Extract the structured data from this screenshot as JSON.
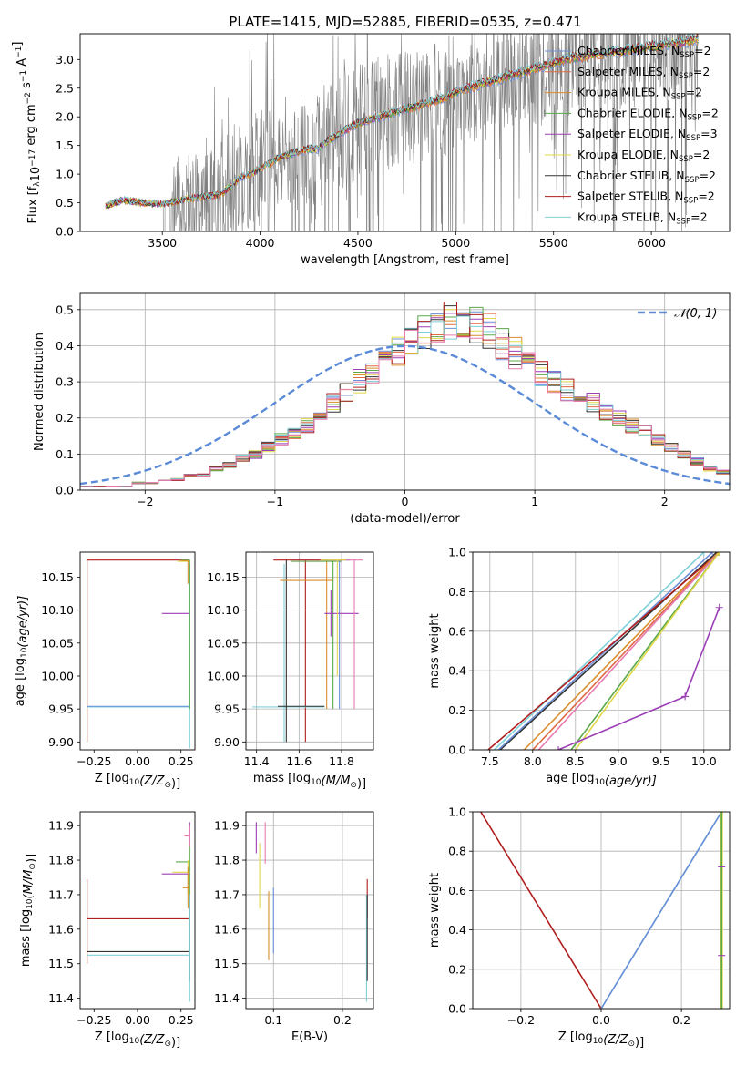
{
  "figure_title": "PLATE=1415, MJD=52885, FIBERID=0535, z=0.471",
  "colors": {
    "Chabrier MILES": "#6a8fd8",
    "Salpeter MILES": "#e06a44",
    "Kroupa MILES": "#d98e2b",
    "Chabrier ELODIE": "#5aa84a",
    "Salpeter ELODIE": "#9b3fb5",
    "Kroupa ELODIE": "#e0d84a",
    "Chabrier STELIB": "#333333",
    "Salpeter STELIB": "#b01e1e",
    "Kroupa STELIB": "#7fd0d8",
    "extra_pink": "#e87ab0",
    "extra_lime": "#c2e04a",
    "data": "#808080",
    "normal": "#5b8bd8"
  },
  "chart_data": [
    {
      "id": "spectrum",
      "type": "line",
      "title": "PLATE=1415, MJD=52885, FIBERID=0535, z=0.471",
      "xlabel": "wavelength [Angstrom, rest frame]",
      "ylabel": "Flux [f",
      "ylabel_parts": [
        "Flux [f",
        "λ",
        "10",
        "−17",
        " erg cm",
        "−2",
        " s",
        "−1",
        " A",
        "−1",
        "]"
      ],
      "xlim": [
        3080,
        6400
      ],
      "ylim": [
        0,
        3.45
      ],
      "xticks": [
        3500,
        4000,
        4500,
        5000,
        5500,
        6000
      ],
      "yticks": [
        0.0,
        0.5,
        1.0,
        1.5,
        2.0,
        2.5,
        3.0
      ],
      "ytick_labels": [
        "0.0",
        "0.5",
        "1.0",
        "1.5",
        "2.0",
        "2.5",
        "3.0"
      ],
      "legend_position": "upper-right",
      "legend": [
        {
          "model": "Chabrier MILES",
          "label": "Chabrier MILES, N",
          "sub": "SSP",
          "suffix": "=2"
        },
        {
          "model": "Salpeter MILES",
          "label": "Salpeter MILES, N",
          "sub": "SSP",
          "suffix": "=2"
        },
        {
          "model": "Kroupa MILES",
          "label": "Kroupa MILES, N",
          "sub": "SSP",
          "suffix": "=2"
        },
        {
          "model": "Chabrier ELODIE",
          "label": "Chabrier ELODIE, N",
          "sub": "SSP",
          "suffix": "=2"
        },
        {
          "model": "Salpeter ELODIE",
          "label": "Salpeter ELODIE, N",
          "sub": "SSP",
          "suffix": "=3"
        },
        {
          "model": "Kroupa ELODIE",
          "label": "Kroupa ELODIE, N",
          "sub": "SSP",
          "suffix": "=2"
        },
        {
          "model": "Chabrier STELIB",
          "label": "Chabrier STELIB, N",
          "sub": "SSP",
          "suffix": "=2"
        },
        {
          "model": "Salpeter STELIB",
          "label": "Salpeter STELIB, N",
          "sub": "SSP",
          "suffix": "=2"
        },
        {
          "model": "Kroupa STELIB",
          "label": "Kroupa STELIB, N",
          "sub": "SSP",
          "suffix": "=2"
        }
      ],
      "model_x": [
        3210,
        3300,
        3400,
        3500,
        3600,
        3700,
        3800,
        3850,
        3900,
        3950,
        4000,
        4050,
        4100,
        4150,
        4200,
        4250,
        4300,
        4350,
        4400,
        4450,
        4500,
        4550,
        4600,
        4650,
        4700,
        4750,
        4800,
        4850,
        4900,
        4950,
        5000,
        5050,
        5100,
        5150,
        5200,
        5250,
        5300,
        5350,
        5400,
        5450,
        5500,
        5550,
        5600,
        5650,
        5700,
        5750,
        5800,
        5850,
        5900,
        5950,
        6000,
        6050,
        6100,
        6150,
        6200
      ],
      "model_y": [
        0.45,
        0.55,
        0.5,
        0.48,
        0.55,
        0.6,
        0.65,
        0.8,
        0.95,
        1.0,
        1.1,
        1.2,
        1.3,
        1.35,
        1.4,
        1.45,
        1.45,
        1.6,
        1.7,
        1.8,
        1.9,
        1.95,
        2.0,
        2.05,
        2.1,
        2.15,
        2.2,
        2.25,
        2.3,
        2.35,
        2.45,
        2.5,
        2.55,
        2.6,
        2.65,
        2.7,
        2.75,
        2.8,
        2.85,
        2.9,
        2.95,
        3.0,
        3.05,
        3.05,
        3.1,
        3.1,
        3.15,
        3.15,
        3.2,
        3.2,
        3.25,
        3.25,
        3.3,
        3.3,
        3.35
      ]
    },
    {
      "id": "residuals",
      "type": "line",
      "xlabel": "(data-model)/error",
      "ylabel": "Normed distribution",
      "xlim": [
        -2.5,
        2.5
      ],
      "ylim": [
        0,
        0.545
      ],
      "xticks": [
        -2,
        -1,
        0,
        1,
        2
      ],
      "xtick_labels": [
        "−2",
        "−1",
        "0",
        "1",
        "2"
      ],
      "yticks": [
        0.0,
        0.1,
        0.2,
        0.3,
        0.4,
        0.5
      ],
      "ytick_labels": [
        "0.0",
        "0.1",
        "0.2",
        "0.3",
        "0.4",
        "0.5"
      ],
      "legend_position": "upper-right",
      "legend": [
        {
          "label": "𝒩(0, 1)",
          "series": "normal"
        }
      ],
      "hist_bin_width": 0.1,
      "hist_base": [
        0.01,
        0.01,
        0.01,
        0.01,
        0.02,
        0.02,
        0.03,
        0.03,
        0.04,
        0.04,
        0.06,
        0.07,
        0.09,
        0.1,
        0.12,
        0.14,
        0.16,
        0.18,
        0.21,
        0.24,
        0.27,
        0.3,
        0.33,
        0.36,
        0.39,
        0.42,
        0.44,
        0.46,
        0.47,
        0.47,
        0.46,
        0.44,
        0.41,
        0.38,
        0.35,
        0.32,
        0.3,
        0.28,
        0.26,
        0.24,
        0.22,
        0.2,
        0.18,
        0.16,
        0.14,
        0.12,
        0.1,
        0.08,
        0.06,
        0.05
      ]
    },
    {
      "id": "age-vs-Z",
      "type": "scatter",
      "xlabel": "Z [log",
      "xlabel_parts": [
        "Z [log",
        "10",
        "(Z/Z",
        "⊙",
        ")]"
      ],
      "ylabel": "age  [log",
      "ylabel_parts": [
        "age  [log",
        "10",
        "(age/yr)]"
      ],
      "xlim": [
        -0.33,
        0.33
      ],
      "ylim": [
        9.888,
        10.188
      ],
      "xticks": [
        -0.25,
        0.0,
        0.25
      ],
      "xtick_labels": [
        "−0.25",
        "0.00",
        "0.25"
      ],
      "yticks": [
        9.9,
        9.95,
        10.0,
        10.05,
        10.1,
        10.15
      ],
      "ytick_labels": [
        "9.90",
        "9.95",
        "10.00",
        "10.05",
        "10.10",
        "10.15"
      ]
    },
    {
      "id": "age-vs-mass",
      "type": "scatter",
      "xlabel": "mass [log",
      "xlabel_parts": [
        "mass [log",
        "10",
        "(M/M",
        "⊙",
        ")]"
      ],
      "xlim": [
        11.35,
        11.95
      ],
      "ylim": [
        9.888,
        10.188
      ],
      "xticks": [
        11.4,
        11.6,
        11.8
      ],
      "xtick_labels": [
        "11.4",
        "11.6",
        "11.8"
      ],
      "yticks": [
        9.9,
        9.95,
        10.0,
        10.05,
        10.1,
        10.15
      ],
      "ytick_labels": [
        "9.90",
        "9.95",
        "10.00",
        "10.05",
        "10.10",
        "10.15"
      ]
    },
    {
      "id": "cumulative-age",
      "type": "line",
      "xlabel": "age  [log",
      "xlabel_parts": [
        "age  [log",
        "10",
        "(age/yr)]"
      ],
      "ylabel": "mass weight",
      "xlim": [
        7.3,
        10.3
      ],
      "ylim": [
        0,
        1.0
      ],
      "xticks": [
        7.5,
        8.0,
        8.5,
        9.0,
        9.5,
        10.0
      ],
      "xtick_labels": [
        "7.5",
        "8.0",
        "8.5",
        "9.0",
        "9.5",
        "10.0"
      ],
      "yticks": [
        0.0,
        0.2,
        0.4,
        0.6,
        0.8,
        1.0
      ],
      "ytick_labels": [
        "0.0",
        "0.2",
        "0.4",
        "0.6",
        "0.8",
        "1.0"
      ],
      "series": [
        {
          "model": "Chabrier STELIB",
          "x": [
            7.62,
            10.15
          ],
          "y": [
            0.0,
            1.0
          ]
        },
        {
          "model": "Kroupa STELIB",
          "x": [
            7.55,
            10.0
          ],
          "y": [
            0.0,
            1.0
          ]
        },
        {
          "model": "Chabrier MILES",
          "x": [
            7.6,
            10.1
          ],
          "y": [
            0.0,
            1.0
          ]
        },
        {
          "model": "Salpeter STELIB",
          "x": [
            7.48,
            10.18
          ],
          "y": [
            0.0,
            1.0
          ]
        },
        {
          "model": "Kroupa MILES",
          "x": [
            7.9,
            10.17
          ],
          "y": [
            0.0,
            1.0
          ]
        },
        {
          "model": "Salpeter MILES",
          "x": [
            8.0,
            10.18
          ],
          "y": [
            0.0,
            1.0
          ]
        },
        {
          "model": "extra_pink",
          "x": [
            8.07,
            10.18
          ],
          "y": [
            0.0,
            1.0
          ]
        },
        {
          "model": "Chabrier ELODIE",
          "x": [
            8.45,
            10.18
          ],
          "y": [
            0.0,
            1.0
          ]
        },
        {
          "model": "Kroupa ELODIE",
          "x": [
            8.5,
            10.18
          ],
          "y": [
            0.0,
            1.0
          ]
        },
        {
          "model": "Salpeter ELODIE",
          "x": [
            8.3,
            9.78,
            10.18
          ],
          "y": [
            0.0,
            0.27,
            0.72
          ]
        }
      ]
    },
    {
      "id": "mass-vs-Z",
      "type": "scatter",
      "xlabel": "Z [log",
      "xlabel_parts": [
        "Z [log",
        "10",
        "(Z/Z",
        "⊙",
        ")]"
      ],
      "ylabel": "mass [log",
      "ylabel_parts": [
        "mass [log",
        "10",
        "(M/M",
        "⊙",
        ")]"
      ],
      "xlim": [
        -0.33,
        0.33
      ],
      "ylim": [
        11.37,
        11.94
      ],
      "xticks": [
        -0.25,
        0.0,
        0.25
      ],
      "xtick_labels": [
        "−0.25",
        "0.00",
        "0.25"
      ],
      "yticks": [
        11.4,
        11.5,
        11.6,
        11.7,
        11.8,
        11.9
      ],
      "ytick_labels": [
        "11.4",
        "11.5",
        "11.6",
        "11.7",
        "11.8",
        "11.9"
      ]
    },
    {
      "id": "mass-vs-ebv",
      "type": "scatter",
      "xlabel": "E(B-V)",
      "xlim": [
        0.06,
        0.245
      ],
      "ylim": [
        11.37,
        11.94
      ],
      "xticks": [
        0.1,
        0.2
      ],
      "xtick_labels": [
        "0.1",
        "0.2"
      ],
      "yticks": [
        11.4,
        11.5,
        11.6,
        11.7,
        11.8,
        11.9
      ],
      "ytick_labels": [
        "11.4",
        "11.5",
        "11.6",
        "11.7",
        "11.8",
        "11.9"
      ]
    },
    {
      "id": "cumulative-Z",
      "type": "line",
      "xlabel": "Z [log",
      "xlabel_parts": [
        "Z [log",
        "10",
        "(Z/Z",
        "⊙",
        ")]"
      ],
      "ylabel": "mass weight",
      "xlim": [
        -0.32,
        0.32
      ],
      "ylim": [
        0,
        1.0
      ],
      "xticks": [
        -0.2,
        0.0,
        0.2
      ],
      "xtick_labels": [
        "−0.2",
        "0.0",
        "0.2"
      ],
      "yticks": [
        0.0,
        0.2,
        0.4,
        0.6,
        0.8,
        1.0
      ],
      "ytick_labels": [
        "0.0",
        "0.2",
        "0.4",
        "0.6",
        "0.8",
        "1.0"
      ],
      "series": [
        {
          "model": "Salpeter STELIB",
          "x": [
            -0.3,
            0.0
          ],
          "y": [
            1.0,
            0.0
          ]
        },
        {
          "model": "Kroupa STELIB",
          "x": [
            0.0,
            0.3
          ],
          "y": [
            0.0,
            1.0
          ]
        },
        {
          "model": "Chabrier MILES",
          "x": [
            0.0,
            0.3
          ],
          "y": [
            0.0,
            1.0
          ]
        },
        {
          "model": "Kroupa ELODIE",
          "x": [
            0.3,
            0.3
          ],
          "y": [
            0.0,
            1.0
          ]
        },
        {
          "model": "Chabrier ELODIE",
          "x": [
            0.3,
            0.3
          ],
          "y": [
            0.0,
            1.0
          ]
        }
      ]
    }
  ]
}
